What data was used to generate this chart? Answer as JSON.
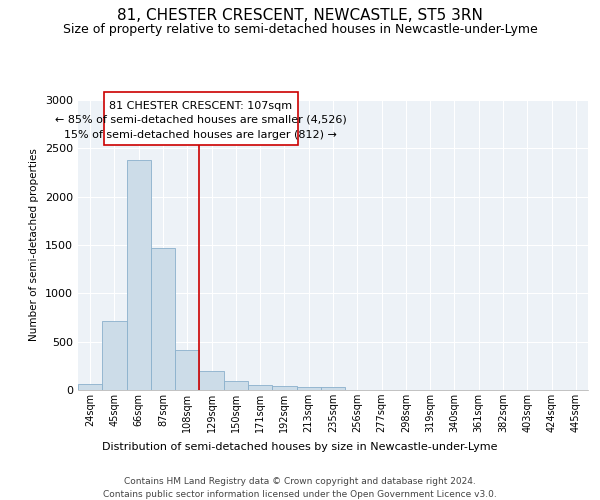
{
  "title": "81, CHESTER CRESCENT, NEWCASTLE, ST5 3RN",
  "subtitle": "Size of property relative to semi-detached houses in Newcastle-under-Lyme",
  "xlabel_bottom": "Distribution of semi-detached houses by size in Newcastle-under-Lyme",
  "ylabel": "Number of semi-detached properties",
  "footer_line1": "Contains HM Land Registry data © Crown copyright and database right 2024.",
  "footer_line2": "Contains public sector information licensed under the Open Government Licence v3.0.",
  "categories": [
    "24sqm",
    "45sqm",
    "66sqm",
    "87sqm",
    "108sqm",
    "129sqm",
    "150sqm",
    "171sqm",
    "192sqm",
    "213sqm",
    "235sqm",
    "256sqm",
    "277sqm",
    "298sqm",
    "319sqm",
    "340sqm",
    "361sqm",
    "382sqm",
    "403sqm",
    "424sqm",
    "445sqm"
  ],
  "values": [
    60,
    710,
    2380,
    1470,
    410,
    200,
    90,
    55,
    45,
    30,
    30,
    0,
    0,
    0,
    0,
    0,
    0,
    0,
    0,
    0,
    0
  ],
  "bar_color": "#ccdce8",
  "bar_edge_color": "#8ab0cc",
  "vline_color": "#cc0000",
  "vline_label": "81 CHESTER CRESCENT: 107sqm",
  "annotation_smaller": "← 85% of semi-detached houses are smaller (4,526)",
  "annotation_larger": "15% of semi-detached houses are larger (812) →",
  "annotation_box_color": "#cc0000",
  "ylim": [
    0,
    3000
  ],
  "yticks": [
    0,
    500,
    1000,
    1500,
    2000,
    2500,
    3000
  ],
  "bg_color": "#edf2f7",
  "grid_color": "#ffffff",
  "title_fontsize": 11,
  "subtitle_fontsize": 9
}
